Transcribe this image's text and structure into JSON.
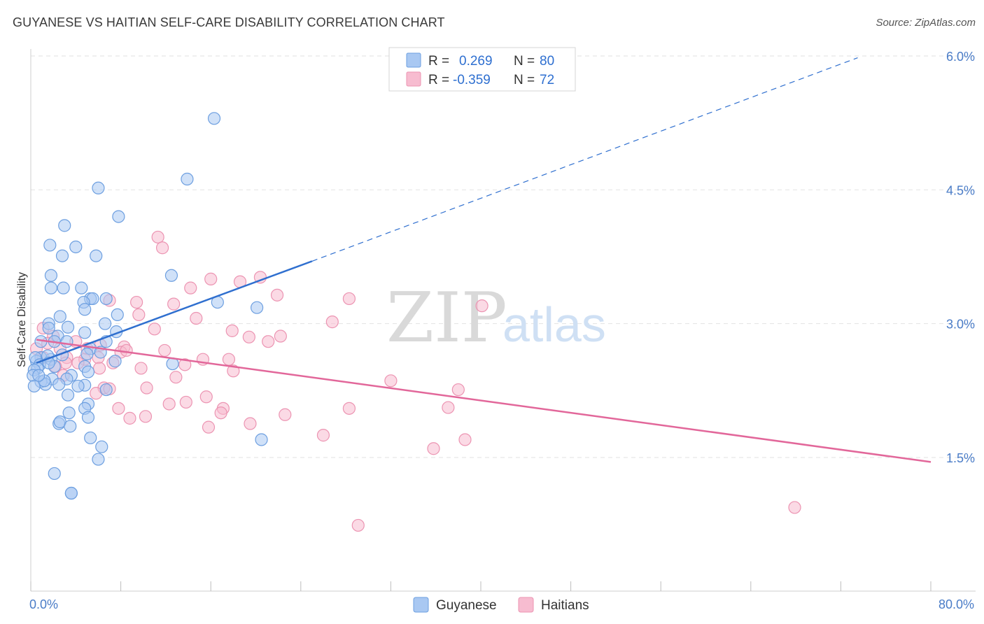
{
  "title": "GUYANESE VS HAITIAN SELF-CARE DISABILITY CORRELATION CHART",
  "source": "Source: ZipAtlas.com",
  "watermark": {
    "zip": "ZIP",
    "atlas": "atlas"
  },
  "colors": {
    "guyanese_fill": "#a9c8f2",
    "guyanese_stroke": "#6d9fe0",
    "guyanese_line": "#2f6fcf",
    "haitians_fill": "#f7bcd0",
    "haitians_stroke": "#ec94b2",
    "haitians_line": "#e2679a",
    "axis_label": "#4a7cc7",
    "grid": "#e2e2e2"
  },
  "legend": {
    "rows": [
      {
        "r_label": "R =",
        "r_value": "0.269",
        "n_label": "N =",
        "n_value": "80"
      },
      {
        "r_label": "R =",
        "r_value": "-0.359",
        "n_label": "N =",
        "n_value": "72"
      }
    ]
  },
  "chart_data": {
    "type": "scatter",
    "xlabel": "",
    "ylabel": "Self-Care Disability",
    "xlim": [
      0,
      80
    ],
    "ylim": [
      0.0,
      6.2
    ],
    "x_tick_labels": [
      "0.0%",
      "80.0%"
    ],
    "y_ticks": [
      1.5,
      3.0,
      4.5,
      6.0
    ],
    "y_tick_labels": [
      "1.5%",
      "3.0%",
      "4.5%",
      "6.0%"
    ],
    "grid": true,
    "legend_placement": "top-center",
    "series": [
      {
        "name": "Guyanese",
        "trend": {
          "x0": 0.5,
          "y0": 2.56,
          "x1": 25.0,
          "y1": 3.7,
          "dashed_to_x": 73.5,
          "dashed_to_y": 5.98
        },
        "points": [
          [
            16.3,
            5.3
          ],
          [
            13.9,
            4.62
          ],
          [
            6.0,
            4.52
          ],
          [
            7.8,
            4.2
          ],
          [
            3.0,
            4.1
          ],
          [
            1.7,
            3.88
          ],
          [
            4.0,
            3.86
          ],
          [
            2.8,
            3.76
          ],
          [
            5.8,
            3.76
          ],
          [
            1.8,
            3.54
          ],
          [
            12.5,
            3.54
          ],
          [
            1.8,
            3.4
          ],
          [
            2.9,
            3.4
          ],
          [
            4.5,
            3.4
          ],
          [
            5.3,
            3.28
          ],
          [
            5.5,
            3.28
          ],
          [
            6.7,
            3.28
          ],
          [
            4.7,
            3.24
          ],
          [
            16.6,
            3.24
          ],
          [
            4.8,
            3.16
          ],
          [
            20.1,
            3.18
          ],
          [
            2.6,
            3.08
          ],
          [
            7.7,
            3.1
          ],
          [
            6.6,
            3.0
          ],
          [
            1.6,
            3.0
          ],
          [
            1.6,
            2.95
          ],
          [
            3.3,
            2.96
          ],
          [
            4.8,
            2.9
          ],
          [
            7.6,
            2.91
          ],
          [
            2.4,
            2.86
          ],
          [
            0.9,
            2.8
          ],
          [
            3.2,
            2.8
          ],
          [
            2.1,
            2.8
          ],
          [
            6.7,
            2.8
          ],
          [
            5.3,
            2.72
          ],
          [
            5.0,
            2.66
          ],
          [
            6.2,
            2.68
          ],
          [
            1.8,
            2.6
          ],
          [
            0.9,
            2.62
          ],
          [
            1.5,
            2.64
          ],
          [
            0.5,
            2.58
          ],
          [
            0.4,
            2.62
          ],
          [
            7.5,
            2.58
          ],
          [
            12.6,
            2.55
          ],
          [
            0.8,
            2.54
          ],
          [
            0.6,
            2.5
          ],
          [
            2.1,
            2.52
          ],
          [
            4.8,
            2.52
          ],
          [
            3.6,
            2.42
          ],
          [
            0.3,
            2.48
          ],
          [
            5.1,
            2.46
          ],
          [
            0.2,
            2.42
          ],
          [
            1.9,
            2.38
          ],
          [
            3.2,
            2.38
          ],
          [
            0.9,
            2.35
          ],
          [
            1.3,
            2.32
          ],
          [
            0.3,
            2.3
          ],
          [
            2.5,
            2.32
          ],
          [
            4.8,
            2.31
          ],
          [
            6.7,
            2.26
          ],
          [
            4.2,
            2.3
          ],
          [
            3.3,
            2.2
          ],
          [
            5.1,
            2.1
          ],
          [
            4.8,
            2.05
          ],
          [
            3.4,
            2.0
          ],
          [
            5.1,
            1.95
          ],
          [
            2.5,
            1.88
          ],
          [
            2.6,
            1.9
          ],
          [
            3.5,
            1.85
          ],
          [
            5.3,
            1.72
          ],
          [
            6.3,
            1.62
          ],
          [
            20.5,
            1.7
          ],
          [
            6.0,
            1.48
          ],
          [
            2.1,
            1.32
          ],
          [
            3.6,
            1.1
          ],
          [
            3.6,
            1.1
          ],
          [
            1.2,
            2.36
          ],
          [
            0.7,
            2.42
          ],
          [
            1.6,
            2.56
          ],
          [
            2.8,
            2.65
          ]
        ]
      },
      {
        "name": "Haitians",
        "trend": {
          "x0": 0.5,
          "y0": 2.82,
          "x1": 80.0,
          "y1": 1.45
        },
        "points": [
          [
            11.3,
            3.97
          ],
          [
            11.7,
            3.85
          ],
          [
            20.4,
            3.52
          ],
          [
            16.0,
            3.5
          ],
          [
            18.6,
            3.47
          ],
          [
            14.2,
            3.4
          ],
          [
            21.9,
            3.32
          ],
          [
            28.3,
            3.28
          ],
          [
            9.4,
            3.24
          ],
          [
            12.7,
            3.22
          ],
          [
            40.1,
            3.2
          ],
          [
            7.0,
            3.26
          ],
          [
            9.6,
            3.1
          ],
          [
            14.7,
            3.06
          ],
          [
            26.8,
            3.02
          ],
          [
            11.0,
            2.94
          ],
          [
            17.9,
            2.92
          ],
          [
            22.2,
            2.86
          ],
          [
            19.4,
            2.85
          ],
          [
            21.1,
            2.8
          ],
          [
            2.0,
            2.86
          ],
          [
            4.0,
            2.8
          ],
          [
            5.0,
            2.72
          ],
          [
            6.2,
            2.76
          ],
          [
            8.3,
            2.74
          ],
          [
            2.6,
            2.72
          ],
          [
            0.5,
            2.72
          ],
          [
            11.9,
            2.7
          ],
          [
            8.0,
            2.68
          ],
          [
            1.1,
            2.62
          ],
          [
            3.2,
            2.62
          ],
          [
            4.8,
            2.6
          ],
          [
            6.0,
            2.62
          ],
          [
            15.3,
            2.6
          ],
          [
            17.6,
            2.6
          ],
          [
            7.3,
            2.56
          ],
          [
            3.1,
            2.56
          ],
          [
            9.8,
            2.5
          ],
          [
            13.7,
            2.54
          ],
          [
            6.1,
            2.5
          ],
          [
            18.0,
            2.47
          ],
          [
            12.9,
            2.4
          ],
          [
            32.0,
            2.36
          ],
          [
            10.3,
            2.28
          ],
          [
            6.5,
            2.28
          ],
          [
            7.0,
            2.27
          ],
          [
            38.0,
            2.26
          ],
          [
            15.6,
            2.18
          ],
          [
            13.8,
            2.12
          ],
          [
            12.3,
            2.1
          ],
          [
            7.8,
            2.05
          ],
          [
            28.3,
            2.05
          ],
          [
            17.1,
            2.05
          ],
          [
            16.9,
            2.0
          ],
          [
            37.1,
            2.06
          ],
          [
            22.6,
            1.98
          ],
          [
            10.2,
            1.96
          ],
          [
            8.8,
            1.94
          ],
          [
            19.5,
            1.88
          ],
          [
            15.8,
            1.84
          ],
          [
            26.0,
            1.75
          ],
          [
            38.6,
            1.7
          ],
          [
            35.8,
            1.6
          ],
          [
            67.9,
            0.94
          ],
          [
            29.1,
            0.74
          ],
          [
            1.5,
            2.78
          ],
          [
            2.2,
            2.52
          ],
          [
            2.9,
            2.42
          ],
          [
            4.2,
            2.56
          ],
          [
            8.5,
            2.7
          ],
          [
            1.1,
            2.95
          ],
          [
            5.8,
            2.22
          ]
        ]
      }
    ]
  },
  "bottom_legend": [
    {
      "label": "Guyanese"
    },
    {
      "label": "Haitians"
    }
  ]
}
